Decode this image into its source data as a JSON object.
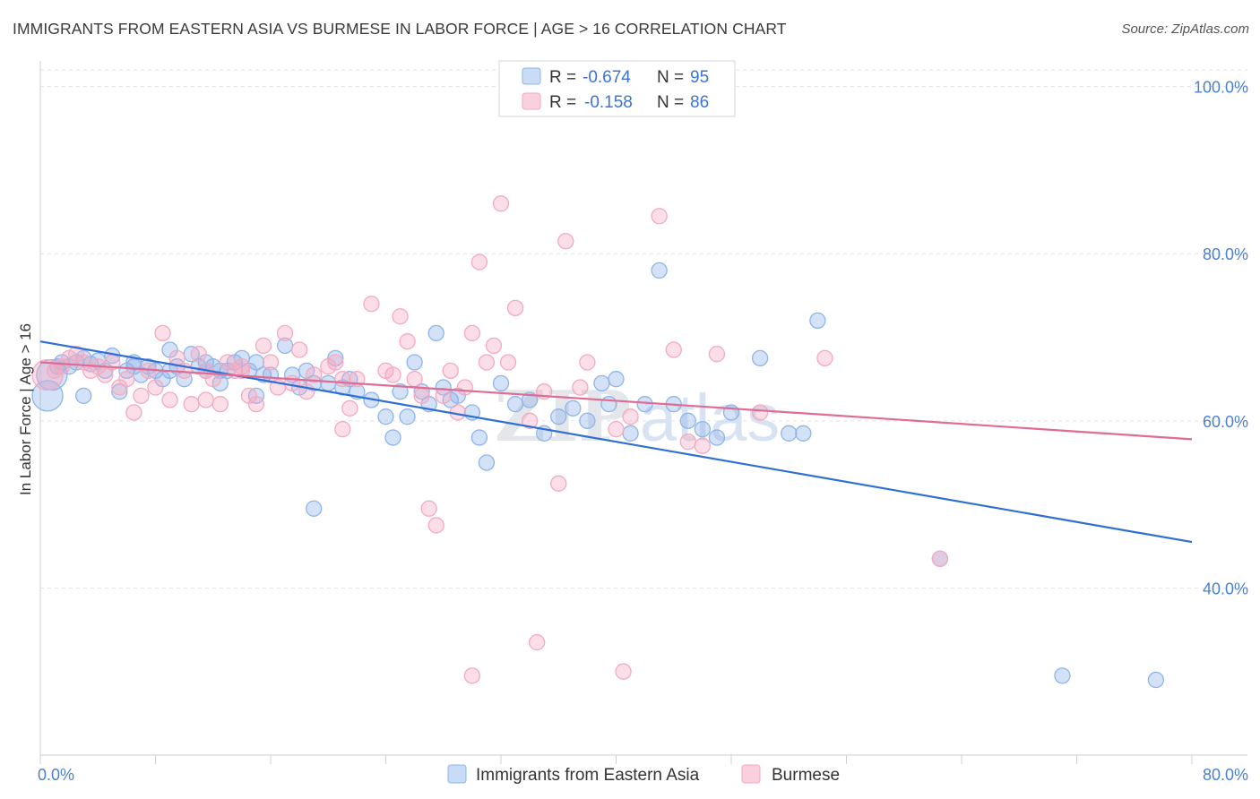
{
  "title": "IMMIGRANTS FROM EASTERN ASIA VS BURMESE IN LABOR FORCE | AGE > 16 CORRELATION CHART",
  "source": "Source: ZipAtlas.com",
  "watermark": {
    "zip": "ZIP",
    "atlas": "atlas"
  },
  "chart_data": {
    "type": "scatter",
    "title": "IMMIGRANTS FROM EASTERN ASIA VS BURMESE IN LABOR FORCE | AGE > 16 CORRELATION CHART",
    "xlabel": "",
    "ylabel": "In Labor Force | Age > 16",
    "xlim": [
      0,
      80
    ],
    "ylim": [
      20,
      102
    ],
    "x_tick_labels": [
      "0.0%",
      "80.0%"
    ],
    "y_ticks": [
      40,
      60,
      80,
      100
    ],
    "y_tick_labels": [
      "40.0%",
      "60.0%",
      "80.0%",
      "100.0%"
    ],
    "grid": true,
    "legend_placement": "top-center",
    "series": [
      {
        "name": "Immigrants from Eastern Asia",
        "color": "#8fb4ea",
        "line_color": "#2f6fd4",
        "R": "-0.674",
        "N": "95",
        "trend": {
          "x0": 0,
          "y0": 69.5,
          "x1": 80,
          "y1": 45.5
        },
        "points": [
          [
            0.5,
            63
          ],
          [
            0.8,
            65.5
          ],
          [
            1.2,
            66.5
          ],
          [
            1.5,
            67
          ],
          [
            2,
            66.5
          ],
          [
            2.5,
            67
          ],
          [
            3,
            67.5
          ],
          [
            3.5,
            66.8
          ],
          [
            4,
            67.2
          ],
          [
            4.5,
            66
          ],
          [
            5,
            67.8
          ],
          [
            5.5,
            63.5
          ],
          [
            6,
            66
          ],
          [
            6.5,
            66.5
          ],
          [
            7,
            65.5
          ],
          [
            7.5,
            66.5
          ],
          [
            8,
            66
          ],
          [
            9,
            68.5
          ],
          [
            9.5,
            66.5
          ],
          [
            10,
            65
          ],
          [
            10.5,
            68
          ],
          [
            11,
            66.5
          ],
          [
            11.5,
            67
          ],
          [
            12,
            66.5
          ],
          [
            12.5,
            66
          ],
          [
            13,
            66
          ],
          [
            13.5,
            67
          ],
          [
            14,
            67.5
          ],
          [
            14.5,
            66
          ],
          [
            15,
            67
          ],
          [
            15.5,
            65.5
          ],
          [
            16,
            65.5
          ],
          [
            17,
            69
          ],
          [
            17.5,
            65.5
          ],
          [
            18,
            64
          ],
          [
            18.5,
            66
          ],
          [
            19,
            64.5
          ],
          [
            20,
            64.5
          ],
          [
            20.5,
            67.5
          ],
          [
            21,
            64
          ],
          [
            21.5,
            65
          ],
          [
            22,
            63.5
          ],
          [
            23,
            62.5
          ],
          [
            24,
            60.5
          ],
          [
            24.5,
            58
          ],
          [
            25,
            63.5
          ],
          [
            25.5,
            60.5
          ],
          [
            26,
            67
          ],
          [
            26.5,
            63.5
          ],
          [
            27,
            62
          ],
          [
            27.5,
            70.5
          ],
          [
            28,
            64
          ],
          [
            28.5,
            62.5
          ],
          [
            29,
            63
          ],
          [
            30,
            61
          ],
          [
            30.5,
            58
          ],
          [
            31,
            55
          ],
          [
            32,
            64.5
          ],
          [
            33,
            62
          ],
          [
            34,
            62.5
          ],
          [
            35,
            58.5
          ],
          [
            36,
            60.5
          ],
          [
            37,
            61.5
          ],
          [
            38,
            60
          ],
          [
            39,
            64.5
          ],
          [
            39.5,
            62
          ],
          [
            40,
            65
          ],
          [
            41,
            58.5
          ],
          [
            42,
            62
          ],
          [
            43,
            78
          ],
          [
            44,
            62
          ],
          [
            45,
            60
          ],
          [
            46,
            59
          ],
          [
            47,
            58
          ],
          [
            48,
            61
          ],
          [
            50,
            67.5
          ],
          [
            52,
            58.5
          ],
          [
            53,
            58.5
          ],
          [
            54,
            72
          ],
          [
            62.5,
            43.5
          ],
          [
            71,
            29.5
          ],
          [
            77.5,
            29
          ],
          [
            19,
            49.5
          ],
          [
            15,
            63
          ],
          [
            12.5,
            64.5
          ],
          [
            8.5,
            65
          ],
          [
            6.5,
            67
          ],
          [
            3,
            63
          ],
          [
            9,
            66
          ],
          [
            11.5,
            66
          ]
        ]
      },
      {
        "name": "Burmese",
        "color": "#f4a9c1",
        "line_color": "#e06b93",
        "R": "-0.158",
        "N": "86",
        "trend": {
          "x0": 0,
          "y0": 67.0,
          "x1": 80,
          "y1": 57.8
        },
        "points": [
          [
            0.5,
            65.5
          ],
          [
            1,
            66
          ],
          [
            1.5,
            66.5
          ],
          [
            2,
            67.5
          ],
          [
            2.5,
            68
          ],
          [
            3,
            67
          ],
          [
            3.5,
            66
          ],
          [
            4,
            66.5
          ],
          [
            4.5,
            65.5
          ],
          [
            5,
            67
          ],
          [
            5.5,
            64
          ],
          [
            6,
            65
          ],
          [
            6.5,
            61
          ],
          [
            7,
            63
          ],
          [
            7.5,
            66
          ],
          [
            8,
            64
          ],
          [
            8.5,
            70.5
          ],
          [
            9,
            62.5
          ],
          [
            9.5,
            67.5
          ],
          [
            10,
            66
          ],
          [
            10.5,
            62
          ],
          [
            11,
            68
          ],
          [
            11.5,
            66
          ],
          [
            12,
            65
          ],
          [
            12.5,
            62
          ],
          [
            13,
            67
          ],
          [
            13.5,
            66
          ],
          [
            14,
            66
          ],
          [
            14.5,
            63
          ],
          [
            15,
            62
          ],
          [
            15.5,
            69
          ],
          [
            16,
            67
          ],
          [
            16.5,
            64
          ],
          [
            17,
            70.5
          ],
          [
            17.5,
            64.5
          ],
          [
            18,
            68.5
          ],
          [
            18.5,
            63.5
          ],
          [
            19,
            65.5
          ],
          [
            20,
            66.5
          ],
          [
            20.5,
            67
          ],
          [
            21,
            65
          ],
          [
            21.5,
            61.5
          ],
          [
            22,
            65
          ],
          [
            23,
            74
          ],
          [
            24,
            66
          ],
          [
            24.5,
            65.5
          ],
          [
            25,
            72.5
          ],
          [
            25.5,
            69.5
          ],
          [
            26,
            65
          ],
          [
            26.5,
            63
          ],
          [
            27,
            49.5
          ],
          [
            27.5,
            47.5
          ],
          [
            28,
            63
          ],
          [
            28.5,
            66
          ],
          [
            29,
            61
          ],
          [
            29.5,
            64
          ],
          [
            30,
            70.5
          ],
          [
            30.5,
            79
          ],
          [
            31,
            67
          ],
          [
            31.5,
            69
          ],
          [
            32,
            86
          ],
          [
            32.5,
            67
          ],
          [
            33,
            73.5
          ],
          [
            34,
            60
          ],
          [
            34.5,
            33.5
          ],
          [
            35,
            63.5
          ],
          [
            36,
            52.5
          ],
          [
            36.5,
            81.5
          ],
          [
            37.5,
            64
          ],
          [
            38,
            67
          ],
          [
            40,
            59
          ],
          [
            40.5,
            30
          ],
          [
            41,
            60.5
          ],
          [
            43,
            84.5
          ],
          [
            44,
            68.5
          ],
          [
            45,
            57.5
          ],
          [
            46,
            57
          ],
          [
            47,
            68
          ],
          [
            50,
            61
          ],
          [
            54.5,
            67.5
          ],
          [
            62.5,
            43.5
          ],
          [
            30,
            29.5
          ],
          [
            14,
            66.5
          ],
          [
            21,
            59
          ],
          [
            11.5,
            62.5
          ]
        ]
      }
    ]
  },
  "legend": {
    "r_label": "R =",
    "n_label": "N =",
    "rows": [
      {
        "r": "-0.674",
        "n": "95"
      },
      {
        "r": "-0.158",
        "n": "86"
      }
    ]
  },
  "bottom_legend": [
    "Immigrants from Eastern Asia",
    "Burmese"
  ]
}
